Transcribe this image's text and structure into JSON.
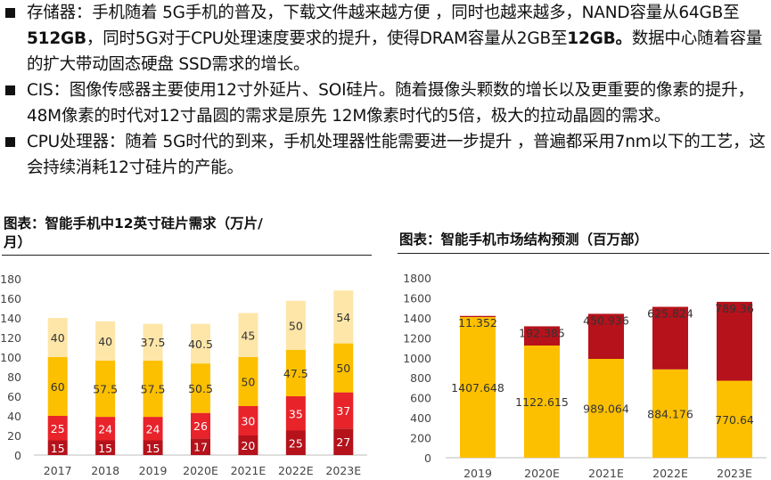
{
  "bullets": [
    {
      "parts": [
        {
          "text": "存储器：手机随着 5G手机的普及，下载文件越来越方便 ，同时也越来越多，NAND容量从64GB至",
          "bold": false
        },
        {
          "text": "512GB",
          "bold": true
        },
        {
          "text": "，同时5G对于CPU处理速度要求的提升，使得DRAM容量从2GB至",
          "bold": false
        },
        {
          "text": "12GB。",
          "bold": true
        },
        {
          "text": "数据中心随着容量的扩大带动固态硬盘 SSD需求的增长。",
          "bold": false
        }
      ]
    },
    {
      "parts": [
        {
          "text": "CIS：图像传感器主要使用12寸外延片、SOI硅片。随着摄像头颗数的增长以及更重要的像素的提升，48M像素的时代对12寸晶圆的需求是原先 12M像素时代的5倍，极大的拉动晶圆的需求。",
          "bold": false
        }
      ]
    },
    {
      "parts": [
        {
          "text": "CPU处理器：随着 5G时代的到来，手机处理器性能需要进一步提升 ，普遍都采用7nm以下的工艺，这会持续消耗12寸硅片的产能。",
          "bold": false
        }
      ]
    }
  ],
  "chart_data": [
    {
      "type": "bar",
      "stacked": true,
      "title": "图表：智能手机中12英寸硅片需求（万片/月）",
      "title_lines": [
        "图表：智能手机中12英寸硅片需求（万片/",
        "月）"
      ],
      "categories": [
        "2017",
        "2018",
        "2019",
        "2020E",
        "2021E",
        "2022E",
        "2023E"
      ],
      "ylim": [
        0,
        180
      ],
      "yticks": [
        0,
        20,
        40,
        60,
        80,
        100,
        120,
        140,
        160,
        180
      ],
      "series": [
        {
          "color": "#B5121B",
          "label_color": "#ffffff",
          "values": [
            15,
            15,
            15,
            17,
            20,
            25,
            27
          ]
        },
        {
          "color": "#E8232A",
          "label_color": "#ffffff",
          "values": [
            25,
            24,
            24,
            26,
            30,
            35,
            37
          ]
        },
        {
          "color": "#FDC000",
          "label_color": "#333333",
          "values": [
            60,
            57.5,
            57.5,
            50.5,
            50,
            47.5,
            50
          ]
        },
        {
          "color": "#FDE6A8",
          "label_color": "#333333",
          "values": [
            40,
            40,
            37.5,
            40.5,
            45,
            50,
            54
          ]
        }
      ]
    },
    {
      "type": "bar",
      "stacked": true,
      "title": "图表：智能手机市场结构预测（百万部）",
      "categories": [
        "2019",
        "2020E",
        "2021E",
        "2022E",
        "2023E"
      ],
      "ylim": [
        0,
        1800
      ],
      "yticks": [
        0,
        200,
        400,
        600,
        800,
        1000,
        1200,
        1400,
        1600,
        1800
      ],
      "series": [
        {
          "color": "#FDC000",
          "label_color": "#333333",
          "values": [
            1407.648,
            1122.615,
            989.064,
            884.176,
            770.64
          ],
          "labels": [
            "1407.648",
            "1122.615",
            "989.064",
            "884.176",
            "770.64"
          ]
        },
        {
          "color": "#B5121B",
          "label_color": "#333333",
          "values": [
            11.352,
            192.385,
            450.936,
            625.824,
            789.36
          ],
          "labels": [
            "11.352",
            "192.385",
            "450.936",
            "625.824",
            "789.36"
          ]
        }
      ]
    }
  ]
}
